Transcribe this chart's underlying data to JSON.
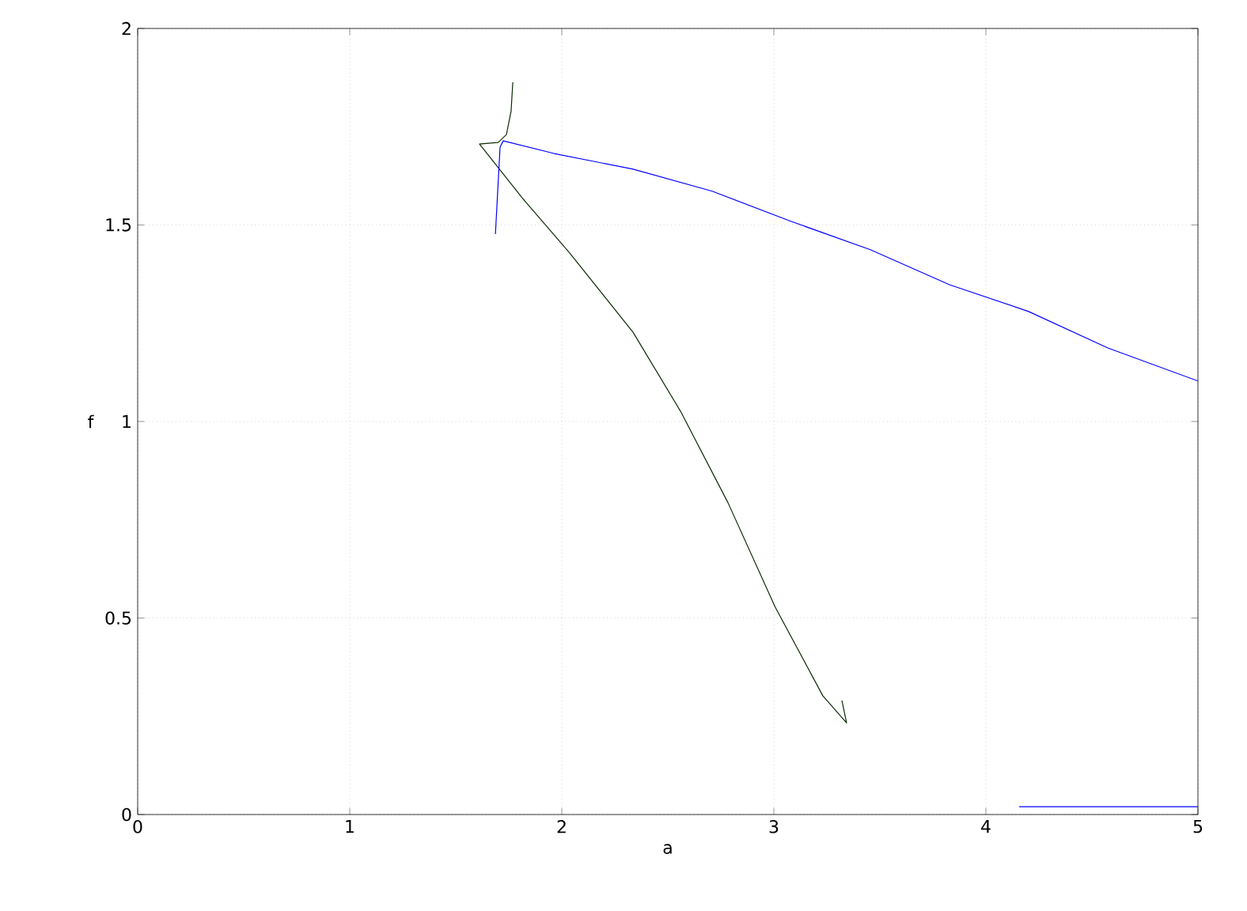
{
  "chart_data": {
    "type": "line",
    "xlabel": "a",
    "ylabel": "f",
    "xlim": [
      0,
      5
    ],
    "ylim": [
      0,
      2
    ],
    "xticks": [
      0,
      1,
      2,
      3,
      4,
      5
    ],
    "yticks": [
      0,
      0.5,
      1,
      1.5,
      2
    ],
    "grid": true,
    "legend": false,
    "marker": "none",
    "line_style": "solid",
    "series": [
      {
        "color": "#0a2a00",
        "x": [
          1.769,
          1.761,
          1.739,
          1.7,
          1.612,
          1.813,
          2.037,
          2.336,
          2.56,
          2.784,
          3.007,
          3.231,
          3.343,
          3.321
        ],
        "values": [
          1.863,
          1.79,
          1.73,
          1.71,
          1.706,
          1.569,
          1.429,
          1.227,
          1.026,
          0.793,
          0.527,
          0.302,
          0.233,
          0.29
        ]
      },
      {
        "color": "#0000ff",
        "x": [
          1.687,
          1.709,
          1.724,
          1.963,
          2.336,
          2.709,
          3.082,
          3.455,
          3.828,
          4.201,
          4.575,
          5
        ],
        "values": [
          1.477,
          1.698,
          1.714,
          1.682,
          1.642,
          1.586,
          1.509,
          1.437,
          1.348,
          1.28,
          1.187,
          1.103
        ]
      },
      {
        "color": "#0000ff",
        "x": [
          4.157,
          5
        ],
        "values": [
          0.02,
          0.02
        ]
      }
    ]
  }
}
